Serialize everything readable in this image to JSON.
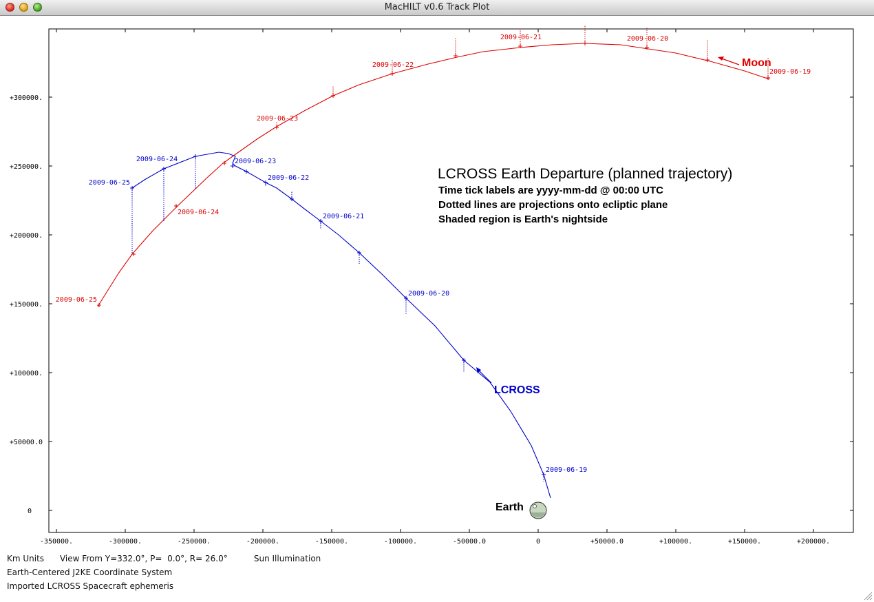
{
  "window": {
    "title": "MacHILT v0.6 Track Plot"
  },
  "plot": {
    "title": "LCROSS Earth Departure (planned trajectory)",
    "notes": [
      "Time tick labels are yyyy-mm-dd @ 00:00 UTC",
      "Dotted lines are projections onto ecliptic plane",
      "Shaded region is Earth's nightside"
    ],
    "xaxis_labels": [
      "-350000.",
      "-300000.",
      "-250000.",
      "-200000.",
      "-150000.",
      "-100000.",
      "-50000.0",
      "0",
      "+50000.0",
      "+100000.",
      "+150000.",
      "+200000."
    ],
    "yaxis_labels": [
      "0",
      "+50000.0",
      "+100000.",
      "+150000.",
      "+200000.",
      "+250000.",
      "+300000."
    ],
    "moon_label": "Moon",
    "lcross_label": "LCROSS",
    "earth_label": "Earth",
    "colors": {
      "moon": "#dd0000",
      "lcross": "#0000cc",
      "axes": "#000000"
    }
  },
  "chart_data": {
    "type": "line",
    "xlim": [
      -355000,
      230000
    ],
    "ylim": [
      -15000,
      350000
    ],
    "series": [
      {
        "name": "Moon",
        "color": "#dd0000",
        "x": [
          168000,
          150000,
          125000,
          100000,
          80000,
          60000,
          34000,
          10000,
          -13000,
          -40000,
          -59000,
          -80000,
          -106000,
          -130000,
          -149000,
          -170000,
          -191000,
          -205000,
          -222000,
          -229000,
          -240000,
          -262000,
          -280000,
          -295000,
          -305000,
          -320000
        ],
        "y": [
          313000,
          319000,
          326000,
          332000,
          335000,
          338000,
          339000,
          338000,
          336000,
          333000,
          329000,
          324000,
          317000,
          309000,
          301000,
          290000,
          278000,
          269000,
          257000,
          252000,
          242000,
          221000,
          203000,
          186000,
          172000,
          148000
        ]
      },
      {
        "name": "LCROSS",
        "color": "#0000cc",
        "x": [
          9000,
          4000,
          -5000,
          -20000,
          -35000,
          -54000,
          -75000,
          -96000,
          -113000,
          -130000,
          -145000,
          -158000,
          -170000,
          -179000,
          -190000,
          -198000,
          -212000,
          -220000,
          -222000,
          -220000,
          -225000,
          -232000,
          -249000,
          -272000,
          -286000,
          -295000
        ],
        "y": [
          9000,
          26000,
          47000,
          72000,
          93000,
          109000,
          134000,
          154000,
          171000,
          187000,
          200000,
          210000,
          219000,
          226000,
          234000,
          238000,
          246000,
          250000,
          252000,
          257000,
          259000,
          260000,
          257000,
          248000,
          240000,
          234000
        ]
      }
    ],
    "time_ticks": [
      {
        "series": "Moon",
        "label": "2009-06-19",
        "x": 167000,
        "y": 314000,
        "z_drop": -15000
      },
      {
        "series": "Moon",
        "label": null,
        "x": 123000,
        "y": 327000,
        "z_drop": -15000
      },
      {
        "series": "Moon",
        "label": "2009-06-20",
        "x": 79000,
        "y": 336000,
        "z_drop": -15000
      },
      {
        "series": "Moon",
        "label": null,
        "x": 34000,
        "y": 339000,
        "z_drop": -13000
      },
      {
        "series": "Moon",
        "label": "2009-06-21",
        "x": -13000,
        "y": 337000,
        "z_drop": -13000
      },
      {
        "series": "Moon",
        "label": null,
        "x": -60000,
        "y": 330000,
        "z_drop": -13000
      },
      {
        "series": "Moon",
        "label": "2009-06-22",
        "x": -106000,
        "y": 317000,
        "z_drop": -10000
      },
      {
        "series": "Moon",
        "label": null,
        "x": -149000,
        "y": 301000,
        "z_drop": -7000
      },
      {
        "series": "Moon",
        "label": "2009-06-23",
        "x": -190000,
        "y": 278000,
        "z_drop": -4000
      },
      {
        "series": "Moon",
        "label": null,
        "x": -228000,
        "y": 252000,
        "z_drop": 0
      },
      {
        "series": "Moon",
        "label": "2009-06-24",
        "x": -263000,
        "y": 221000,
        "z_drop": 0
      },
      {
        "series": "Moon",
        "label": null,
        "x": -294000,
        "y": 186000,
        "z_drop": 0
      },
      {
        "series": "Moon",
        "label": "2009-06-25",
        "x": -319000,
        "y": 149000,
        "z_drop": 0
      },
      {
        "series": "LCROSS",
        "label": "2009-06-19",
        "x": 4000,
        "y": 26000,
        "z_drop": 5000
      },
      {
        "series": "LCROSS",
        "label": null,
        "x": -54000,
        "y": 109000,
        "z_drop": 9000
      },
      {
        "series": "LCROSS",
        "label": "2009-06-20",
        "x": -96000,
        "y": 154000,
        "z_drop": 12000
      },
      {
        "series": "LCROSS",
        "label": null,
        "x": -130000,
        "y": 187000,
        "z_drop": 8000
      },
      {
        "series": "LCROSS",
        "label": "2009-06-21",
        "x": -158000,
        "y": 210000,
        "z_drop": 6000
      },
      {
        "series": "LCROSS",
        "label": null,
        "x": -179000,
        "y": 226000,
        "z_drop": -6000
      },
      {
        "series": "LCROSS",
        "label": "2009-06-22",
        "x": -198000,
        "y": 238000,
        "z_drop": 3000
      },
      {
        "series": "LCROSS",
        "label": null,
        "x": -212000,
        "y": 246000,
        "z_drop": 0
      },
      {
        "series": "LCROSS",
        "label": "2009-06-23",
        "x": -222000,
        "y": 250000,
        "z_drop": 0
      },
      {
        "series": "LCROSS",
        "label": null,
        "x": -249000,
        "y": 257000,
        "z_drop": 24000
      },
      {
        "series": "LCROSS",
        "label": "2009-06-24",
        "x": -272000,
        "y": 248000,
        "z_drop": 38000
      },
      {
        "series": "LCROSS",
        "label": "2009-06-25",
        "x": -295000,
        "y": 234000,
        "z_drop": 48000
      }
    ],
    "earth": {
      "x": 0,
      "y": 0
    }
  },
  "status": {
    "line1": "Km Units      View From Y=332.0°, P=  0.0°, R= 26.0°          Sun Illumination",
    "line2": "Earth-Centered J2KE Coordinate System",
    "line3": "Imported LCROSS Spacecraft ephemeris"
  }
}
